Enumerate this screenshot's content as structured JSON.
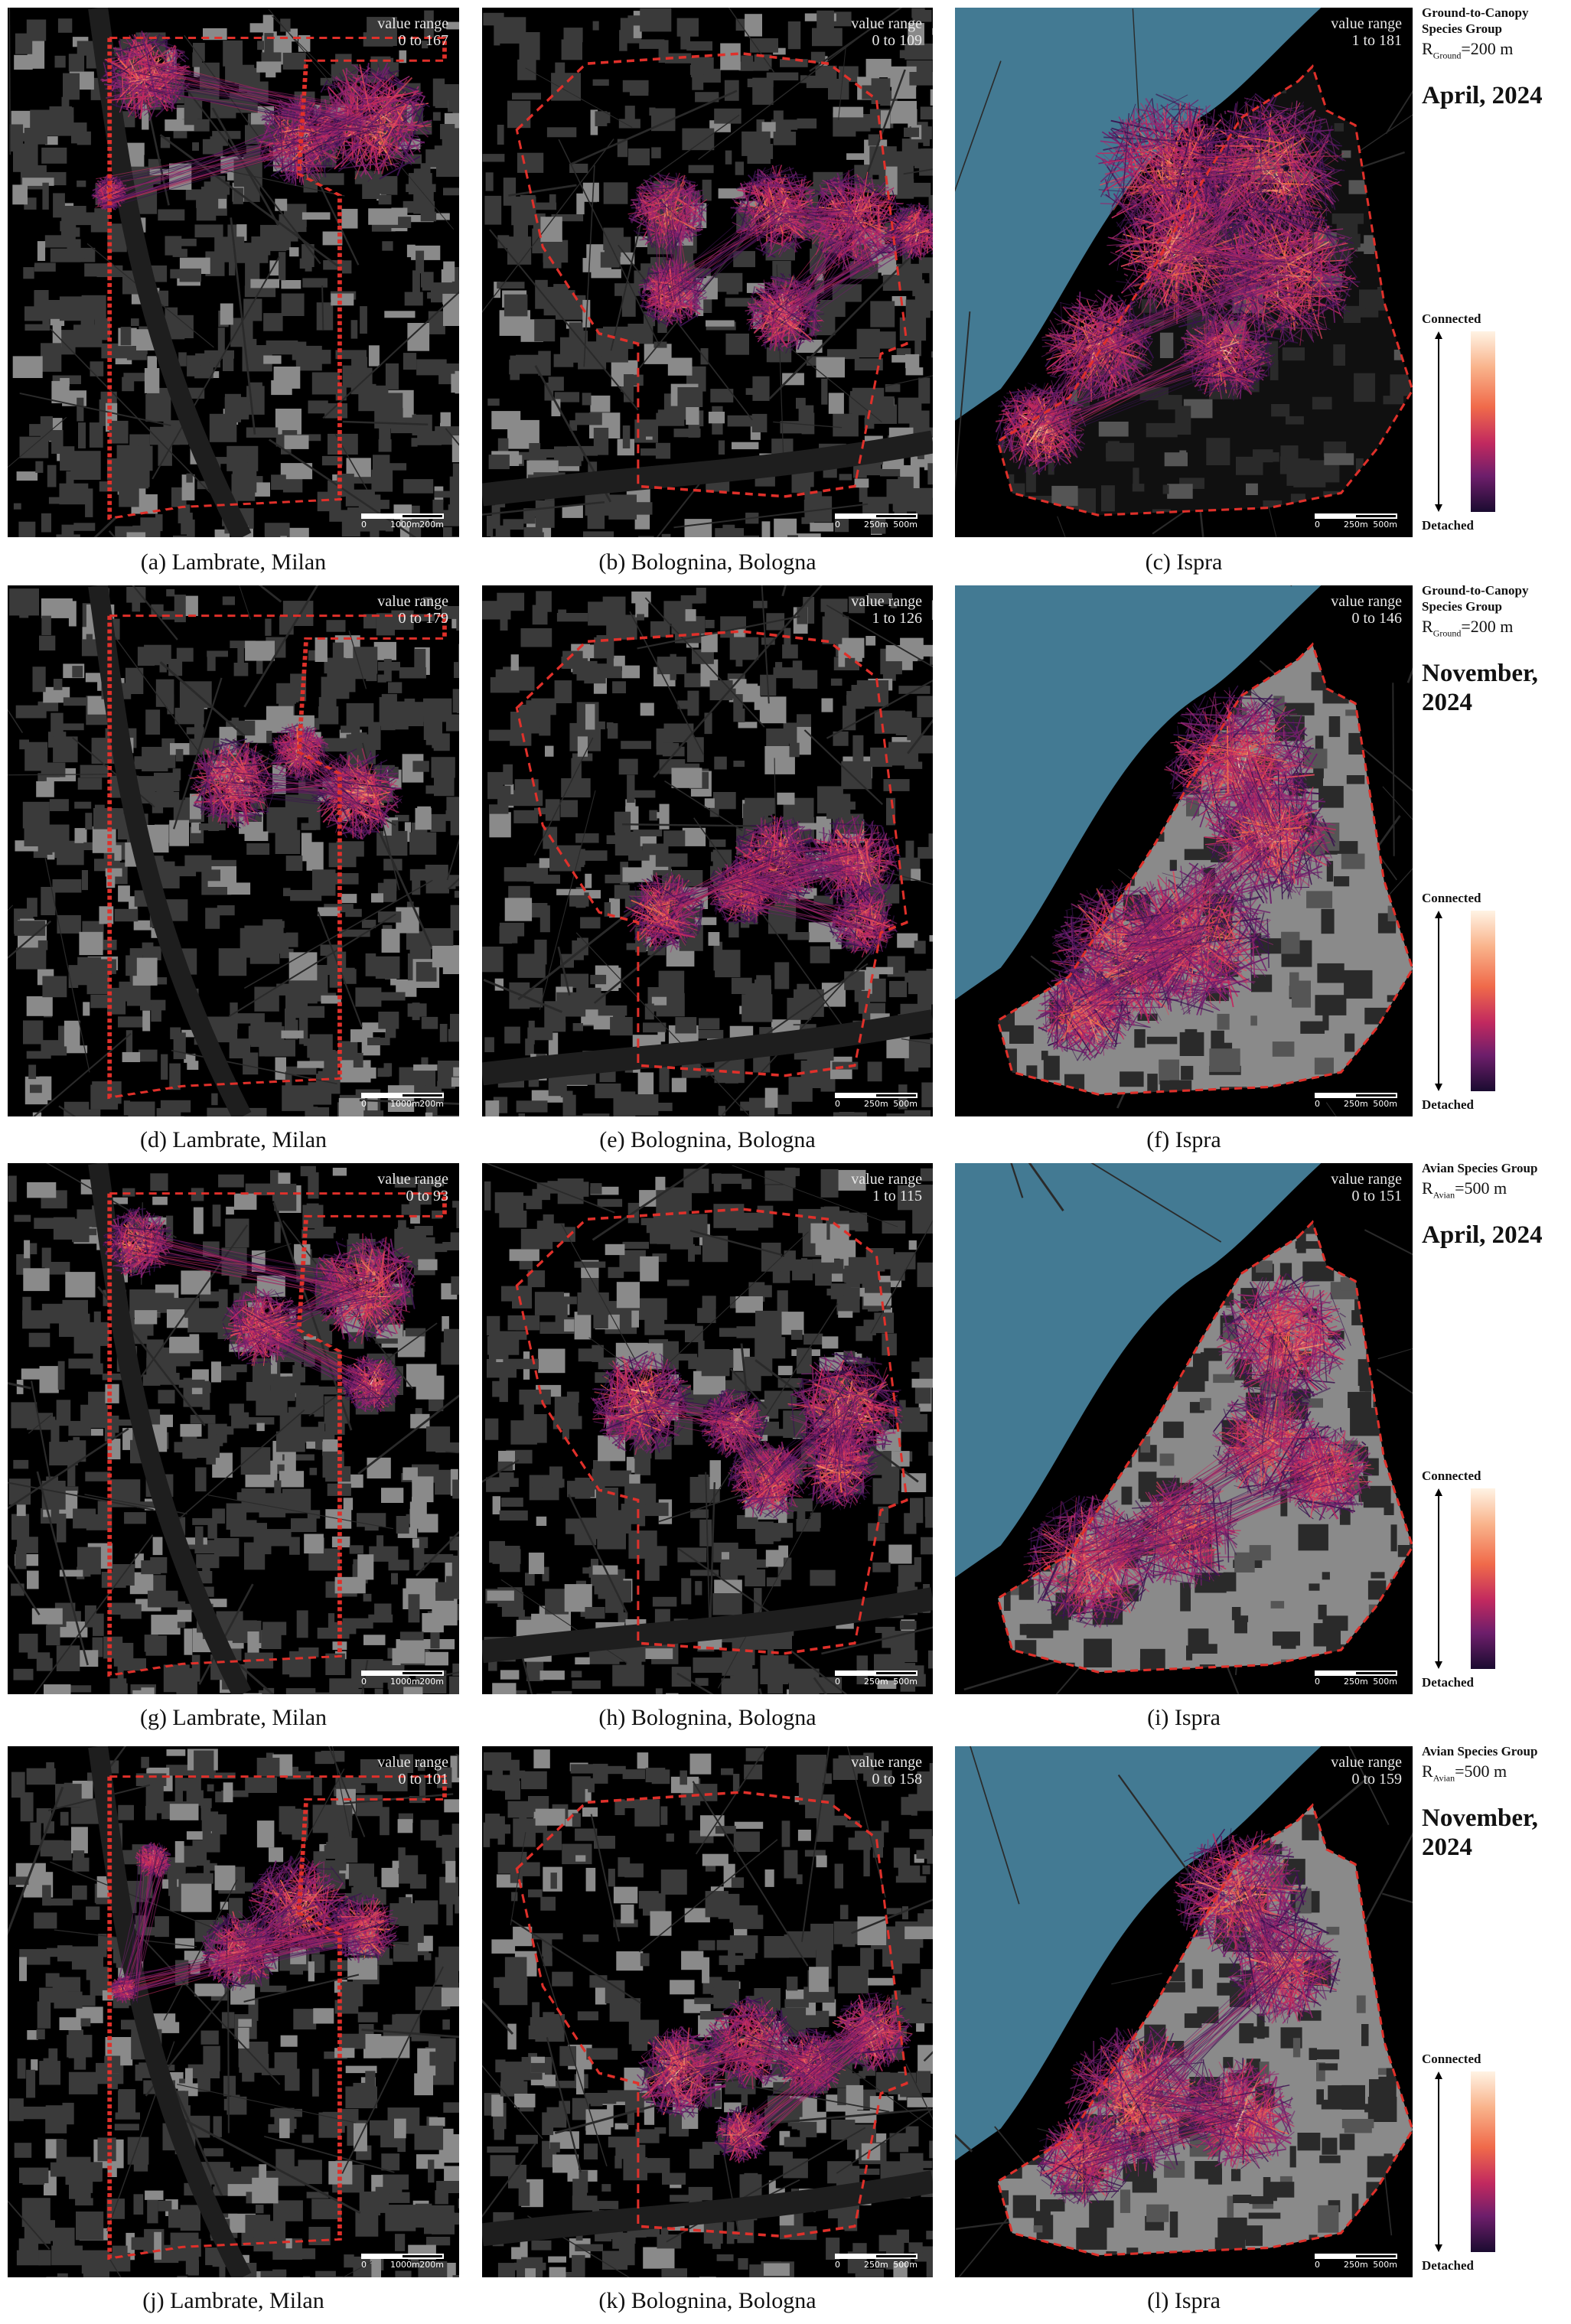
{
  "panels": [
    {
      "id": "a",
      "caption": "(a) Lambrate, Milan",
      "value_range_label": "value range",
      "value_range": "0 to 167",
      "scale_label_left": "1000m",
      "scale_label_right": "200m"
    },
    {
      "id": "b",
      "caption": "(b) Bolognina, Bologna",
      "value_range_label": "value range",
      "value_range": "0 to 109",
      "scale_label_left": "250m",
      "scale_label_right": "500m"
    },
    {
      "id": "c",
      "caption": "(c) Ispra",
      "value_range_label": "value range",
      "value_range": "1 to 181",
      "scale_label_left": "250m",
      "scale_label_right": "500m"
    },
    {
      "id": "d",
      "caption": "(d) Lambrate, Milan",
      "value_range_label": "value range",
      "value_range": "0 to 179",
      "scale_label_left": "1000m",
      "scale_label_right": "200m"
    },
    {
      "id": "e",
      "caption": "(e) Bolognina, Bologna",
      "value_range_label": "value range",
      "value_range": "1 to 126",
      "scale_label_left": "250m",
      "scale_label_right": "500m"
    },
    {
      "id": "f",
      "caption": "(f) Ispra",
      "value_range_label": "value range",
      "value_range": "0 to 146",
      "scale_label_left": "250m",
      "scale_label_right": "500m"
    },
    {
      "id": "g",
      "caption": "(g) Lambrate, Milan",
      "value_range_label": "value range",
      "value_range": "0 to 93",
      "scale_label_left": "1000m",
      "scale_label_right": "200m"
    },
    {
      "id": "h",
      "caption": "(h) Bolognina, Bologna",
      "value_range_label": "value range",
      "value_range": "1 to 115",
      "scale_label_left": "250m",
      "scale_label_right": "500m"
    },
    {
      "id": "i",
      "caption": "(i) Ispra",
      "value_range_label": "value range",
      "value_range": "0 to 151",
      "scale_label_left": "250m",
      "scale_label_right": "500m"
    },
    {
      "id": "j",
      "caption": "(j) Lambrate, Milan",
      "value_range_label": "value range",
      "value_range": "0 to 101",
      "scale_label_left": "1000m",
      "scale_label_right": "200m"
    },
    {
      "id": "k",
      "caption": "(k) Bolognina, Bologna",
      "value_range_label": "value range",
      "value_range": "0 to 158",
      "scale_label_left": "250m",
      "scale_label_right": "500m"
    },
    {
      "id": "l",
      "caption": "(l) Ispra",
      "value_range_label": "value range",
      "value_range": "0 to 159",
      "scale_label_left": "250m",
      "scale_label_right": "500m"
    }
  ],
  "rows": [
    {
      "group": "Ground-to-Canopy Species Group",
      "radius_symbol": "R",
      "radius_sub": "Ground",
      "radius_value": "=200 m",
      "date": "April, 2024"
    },
    {
      "group": "Ground-to-Canopy Species Group",
      "radius_symbol": "R",
      "radius_sub": "Ground",
      "radius_value": "=200 m",
      "date": "November, 2024"
    },
    {
      "group": "Avian Species Group",
      "radius_symbol": "R",
      "radius_sub": "Avian",
      "radius_value": "=500 m",
      "date": "April, 2024"
    },
    {
      "group": "Avian Species Group",
      "radius_symbol": "R",
      "radius_sub": "Avian",
      "radius_value": "=500 m",
      "date": "November, 2024"
    }
  ],
  "legend": {
    "top_label": "Connected",
    "bottom_label": "Detached"
  },
  "colors": {
    "water": "#437a93",
    "land_base": "#000000",
    "buildings_dark": "#3a3a3a",
    "buildings_light": "#8a8a8a",
    "boundary": "#e0302a",
    "connected": "#fff3e4",
    "detached": "#1a0b30"
  }
}
